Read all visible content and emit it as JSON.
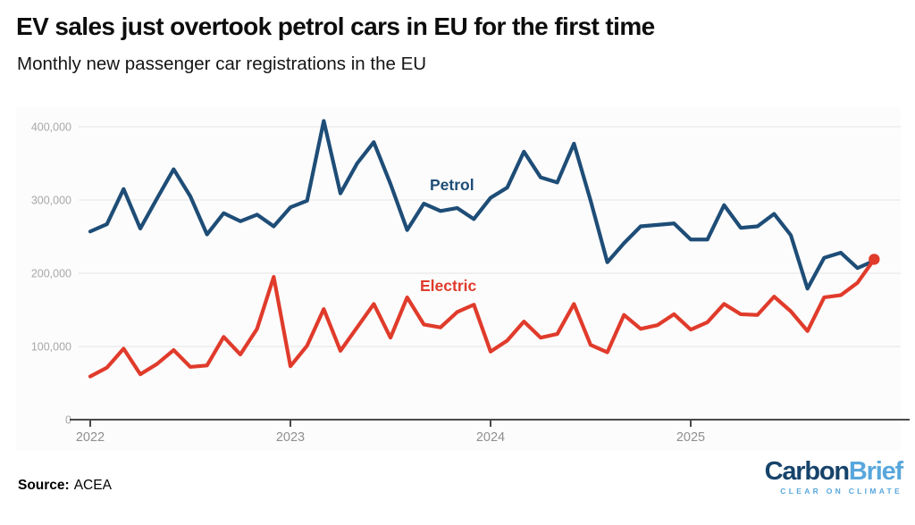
{
  "header": {
    "title": "EV sales just overtook petrol cars in EU for the first time",
    "subtitle": "Monthly new passenger car registrations in the EU"
  },
  "chart_data": {
    "type": "line",
    "title": "EV sales just overtook petrol cars in EU for the first time",
    "subtitle": "Monthly new passenger car registrations in the EU",
    "xlabel": "",
    "ylabel": "",
    "grid": true,
    "legend_position": "inline-annotations",
    "ylim": [
      0,
      425000
    ],
    "x": [
      "2022-01",
      "2022-02",
      "2022-03",
      "2022-04",
      "2022-05",
      "2022-06",
      "2022-07",
      "2022-08",
      "2022-09",
      "2022-10",
      "2022-11",
      "2022-12",
      "2023-01",
      "2023-02",
      "2023-03",
      "2023-04",
      "2023-05",
      "2023-06",
      "2023-07",
      "2023-08",
      "2023-09",
      "2023-10",
      "2023-11",
      "2023-12",
      "2024-01",
      "2024-02",
      "2024-03",
      "2024-04",
      "2024-05",
      "2024-06",
      "2024-07",
      "2024-08",
      "2024-09",
      "2024-10",
      "2024-11",
      "2024-12",
      "2025-01",
      "2025-02",
      "2025-03",
      "2025-04",
      "2025-05",
      "2025-06",
      "2025-07",
      "2025-08",
      "2025-09",
      "2025-10",
      "2025-11",
      "2025-12"
    ],
    "x_tick_labels": [
      "2022",
      "2023",
      "2024",
      "2025"
    ],
    "x_tick_month_index": [
      0,
      12,
      24,
      36
    ],
    "y_ticks": [
      {
        "value": 0,
        "label": "0"
      },
      {
        "value": 100000,
        "label": "100,000"
      },
      {
        "value": 200000,
        "label": "200,000"
      },
      {
        "value": 300000,
        "label": "300,000"
      },
      {
        "value": 400000,
        "label": "400,000"
      }
    ],
    "series": [
      {
        "name": "Petrol",
        "color": "#1e4d77",
        "end_dot": false,
        "values": [
          257000,
          267000,
          315000,
          261000,
          302000,
          342000,
          305000,
          253000,
          282000,
          271000,
          280000,
          264000,
          290000,
          299000,
          408000,
          309000,
          350000,
          379000,
          322000,
          259000,
          295000,
          285000,
          289000,
          274000,
          303000,
          317000,
          366000,
          331000,
          324000,
          377000,
          299000,
          215000,
          241000,
          264000,
          266000,
          268000,
          246000,
          246000,
          293000,
          262000,
          264000,
          281000,
          252000,
          179000,
          221000,
          228000,
          207000,
          217000
        ]
      },
      {
        "name": "Electric",
        "color": "#e03b2b",
        "end_dot": true,
        "values": [
          59000,
          71000,
          97000,
          62000,
          76000,
          95000,
          72000,
          74000,
          113000,
          89000,
          124000,
          195000,
          73000,
          101000,
          151000,
          94000,
          126000,
          158000,
          112000,
          167000,
          130000,
          126000,
          147000,
          157000,
          93000,
          108000,
          134000,
          112000,
          117000,
          158000,
          102000,
          92000,
          143000,
          124000,
          129000,
          144000,
          123000,
          133000,
          158000,
          144000,
          143000,
          168000,
          148000,
          121000,
          167000,
          170000,
          187000,
          219000
        ]
      }
    ]
  },
  "footer": {
    "source_label": "Source:",
    "source_value": "ACEA",
    "logo": {
      "part1": "Carbon",
      "part2": "Brief",
      "tagline": "CLEAR ON CLIMATE",
      "part1_color": "#16436b",
      "part2_color": "#58a7dc"
    }
  }
}
